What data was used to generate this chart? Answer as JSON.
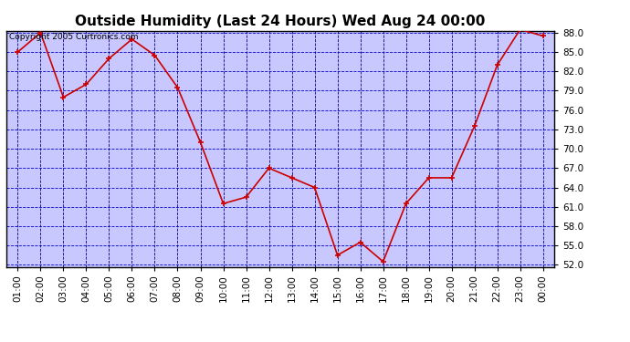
{
  "title": "Outside Humidity (Last 24 Hours) Wed Aug 24 00:00",
  "copyright": "Copyright 2005 Curtronics.com",
  "x_labels": [
    "01:00",
    "02:00",
    "03:00",
    "04:00",
    "05:00",
    "06:00",
    "07:00",
    "08:00",
    "09:00",
    "10:00",
    "11:00",
    "12:00",
    "13:00",
    "14:00",
    "15:00",
    "16:00",
    "17:00",
    "18:00",
    "19:00",
    "20:00",
    "21:00",
    "22:00",
    "23:00",
    "00:00"
  ],
  "y_values": [
    85.0,
    88.0,
    78.0,
    80.0,
    84.0,
    87.0,
    84.5,
    79.5,
    71.0,
    61.5,
    62.5,
    67.0,
    65.5,
    64.0,
    53.5,
    55.5,
    52.5,
    61.5,
    65.5,
    65.5,
    73.5,
    83.0,
    88.5,
    87.5
  ],
  "ylim_min": 52.0,
  "ylim_max": 88.0,
  "yticks": [
    52.0,
    55.0,
    58.0,
    61.0,
    64.0,
    67.0,
    70.0,
    73.0,
    76.0,
    79.0,
    82.0,
    85.0,
    88.0
  ],
  "line_color": "#cc0000",
  "marker_color": "#cc0000",
  "plot_bg_color": "#c8c8ff",
  "fig_bg_color": "#ffffff",
  "grid_color_horiz": "#0000cc",
  "grid_color_vert": "#000088",
  "title_fontsize": 11,
  "tick_fontsize": 7.5,
  "copyright_fontsize": 6.5,
  "border_color": "#000000"
}
